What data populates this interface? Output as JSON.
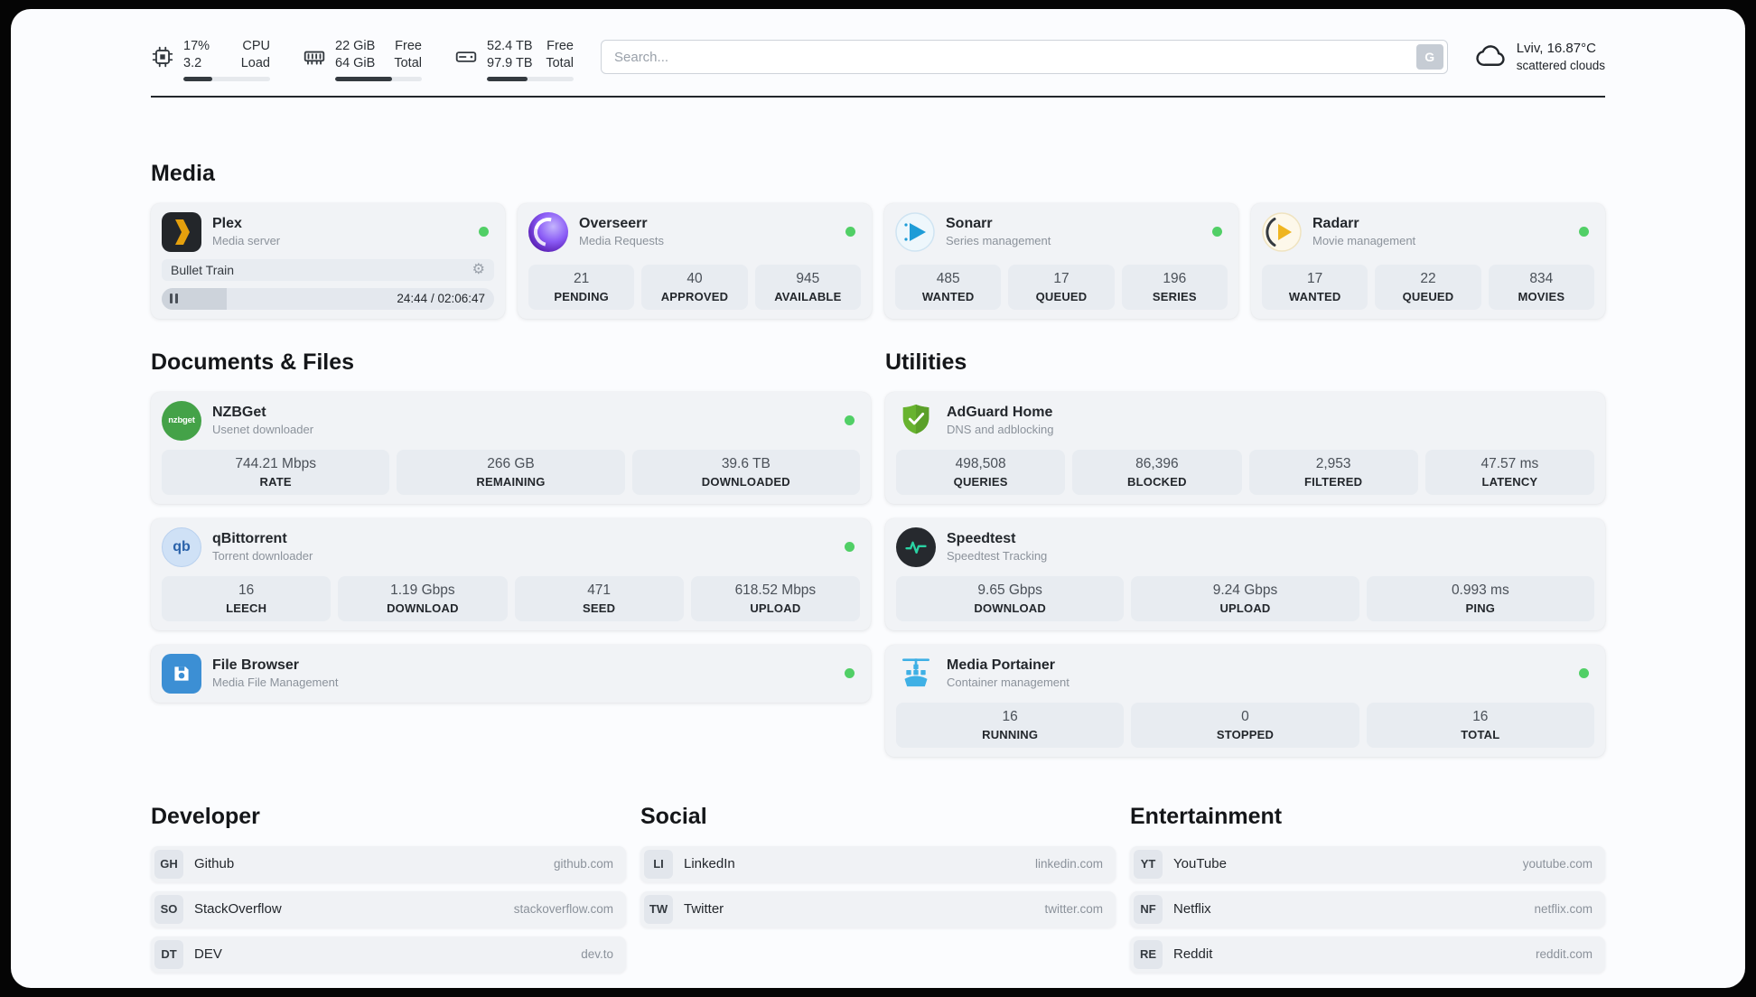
{
  "header": {
    "monitors": {
      "cpu": {
        "top_value": "17%",
        "top_label": "CPU",
        "bottom_value": "3.2",
        "bottom_label": "Load",
        "progress_percent": 33
      },
      "ram": {
        "top_value": "22 GiB",
        "top_label": "Free",
        "bottom_value": "64 GiB",
        "bottom_label": "Total",
        "progress_percent": 66
      },
      "disk": {
        "top_value": "52.4 TB",
        "top_label": "Free",
        "bottom_value": "97.9 TB",
        "bottom_label": "Total",
        "progress_percent": 47
      }
    },
    "search": {
      "placeholder": "Search...",
      "engine_button": "G"
    },
    "weather": {
      "location": "Lviv, 16.87°C",
      "condition": "scattered clouds"
    }
  },
  "sections": {
    "media": {
      "title": "Media",
      "apps": [
        {
          "name": "Plex",
          "subtitle": "Media server",
          "online": true,
          "player": {
            "track": "Bullet Train",
            "state": "paused",
            "time": "24:44 / 02:06:47",
            "progress_percent": 19.5,
            "gear": "⚙"
          }
        },
        {
          "name": "Overseerr",
          "subtitle": "Media Requests",
          "online": true,
          "stats": [
            {
              "value": "21",
              "label": "PENDING"
            },
            {
              "value": "40",
              "label": "APPROVED"
            },
            {
              "value": "945",
              "label": "AVAILABLE"
            }
          ]
        },
        {
          "name": "Sonarr",
          "subtitle": "Series management",
          "online": true,
          "stats": [
            {
              "value": "485",
              "label": "WANTED"
            },
            {
              "value": "17",
              "label": "QUEUED"
            },
            {
              "value": "196",
              "label": "SERIES"
            }
          ]
        },
        {
          "name": "Radarr",
          "subtitle": "Movie management",
          "online": true,
          "stats": [
            {
              "value": "17",
              "label": "WANTED"
            },
            {
              "value": "22",
              "label": "QUEUED"
            },
            {
              "value": "834",
              "label": "MOVIES"
            }
          ]
        }
      ]
    },
    "documents": {
      "title": "Documents & Files",
      "apps": [
        {
          "name": "NZBGet",
          "subtitle": "Usenet downloader",
          "online": true,
          "icon_text": "nzbget",
          "stats": [
            {
              "value": "744.21 Mbps",
              "label": "RATE"
            },
            {
              "value": "266 GB",
              "label": "REMAINING"
            },
            {
              "value": "39.6 TB",
              "label": "DOWNLOADED"
            }
          ]
        },
        {
          "name": "qBittorrent",
          "subtitle": "Torrent downloader",
          "online": true,
          "icon_text": "qb",
          "stats": [
            {
              "value": "16",
              "label": "LEECH"
            },
            {
              "value": "1.19 Gbps",
              "label": "DOWNLOAD"
            },
            {
              "value": "471",
              "label": "SEED"
            },
            {
              "value": "618.52 Mbps",
              "label": "UPLOAD"
            }
          ]
        },
        {
          "name": "File Browser",
          "subtitle": "Media File Management",
          "online": true
        }
      ]
    },
    "utilities": {
      "title": "Utilities",
      "apps": [
        {
          "name": "AdGuard Home",
          "subtitle": "DNS and adblocking",
          "stats": [
            {
              "value": "498,508",
              "label": "QUERIES"
            },
            {
              "value": "86,396",
              "label": "BLOCKED"
            },
            {
              "value": "2,953",
              "label": "FILTERED"
            },
            {
              "value": "47.57 ms",
              "label": "LATENCY"
            }
          ]
        },
        {
          "name": "Speedtest",
          "subtitle": "Speedtest Tracking",
          "stats": [
            {
              "value": "9.65 Gbps",
              "label": "DOWNLOAD"
            },
            {
              "value": "9.24 Gbps",
              "label": "UPLOAD"
            },
            {
              "value": "0.993 ms",
              "label": "PING"
            }
          ]
        },
        {
          "name": "Media Portainer",
          "subtitle": "Container management",
          "online": true,
          "stats": [
            {
              "value": "16",
              "label": "RUNNING"
            },
            {
              "value": "0",
              "label": "STOPPED"
            },
            {
              "value": "16",
              "label": "TOTAL"
            }
          ]
        }
      ]
    },
    "bookmarks": [
      {
        "title": "Developer",
        "items": [
          {
            "abbr": "GH",
            "name": "Github",
            "url": "github.com"
          },
          {
            "abbr": "SO",
            "name": "StackOverflow",
            "url": "stackoverflow.com"
          },
          {
            "abbr": "DT",
            "name": "DEV",
            "url": "dev.to"
          }
        ]
      },
      {
        "title": "Social",
        "items": [
          {
            "abbr": "LI",
            "name": "LinkedIn",
            "url": "linkedin.com"
          },
          {
            "abbr": "TW",
            "name": "Twitter",
            "url": "twitter.com"
          }
        ]
      },
      {
        "title": "Entertainment",
        "items": [
          {
            "abbr": "YT",
            "name": "YouTube",
            "url": "youtube.com"
          },
          {
            "abbr": "NF",
            "name": "Netflix",
            "url": "netflix.com"
          },
          {
            "abbr": "RE",
            "name": "Reddit",
            "url": "reddit.com"
          }
        ]
      }
    ]
  },
  "colors": {
    "status_online": "#51cf66",
    "accent_dark": "#343a40",
    "card_bg": "#f1f3f6"
  }
}
